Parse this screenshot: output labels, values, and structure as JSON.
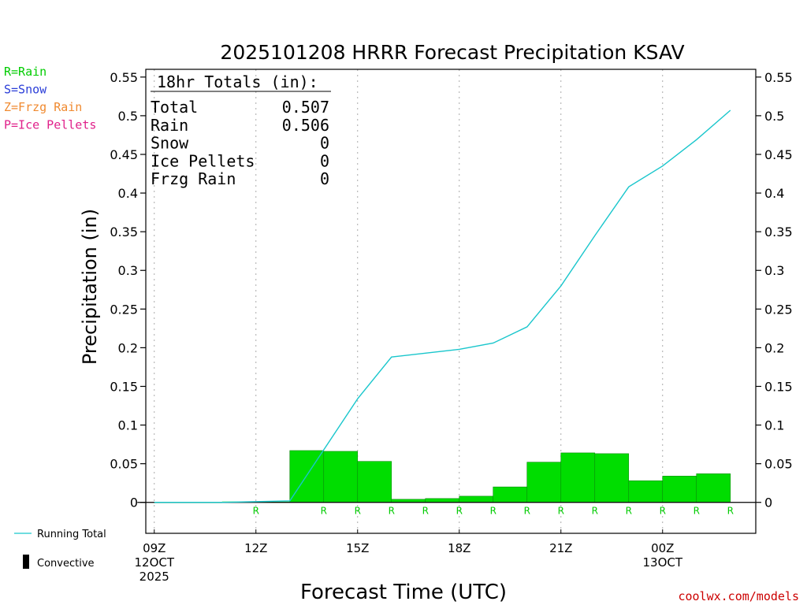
{
  "chart_data": {
    "type": "bar",
    "title": "2025101208 HRRR Forecast Precipitation KSAV",
    "xlabel": "Forecast Time (UTC)",
    "ylabel": "Precipitation (in)",
    "ylim": [
      -0.04,
      0.56
    ],
    "yticks": [
      0,
      0.05,
      0.1,
      0.15,
      0.2,
      0.25,
      0.3,
      0.35,
      0.4,
      0.45,
      0.5,
      0.55
    ],
    "ytick_labels": [
      "0",
      "0.05",
      "0.1",
      "0.15",
      "0.2",
      "0.25",
      "0.3",
      "0.35",
      "0.4",
      "0.45",
      "0.5",
      "0.55"
    ],
    "grid": "vertical dotted lines at labeled hours",
    "xlim": [
      8.75,
      26.75
    ],
    "x_ticks": [
      {
        "hour": 9,
        "lines": [
          "09Z",
          "12OCT",
          "2025"
        ]
      },
      {
        "hour": 12,
        "lines": [
          "12Z"
        ]
      },
      {
        "hour": 15,
        "lines": [
          "15Z"
        ]
      },
      {
        "hour": 18,
        "lines": [
          "18Z"
        ]
      },
      {
        "hour": 21,
        "lines": [
          "21Z"
        ]
      },
      {
        "hour": 24,
        "lines": [
          "00Z",
          "13OCT"
        ]
      }
    ],
    "hourly_precip": {
      "hours": [
        10,
        11,
        12,
        13,
        14,
        15,
        16,
        17,
        18,
        19,
        20,
        21,
        22,
        23,
        24,
        25,
        26
      ],
      "values": [
        0,
        0,
        0.001,
        0.001,
        0.067,
        0.066,
        0.053,
        0.004,
        0.005,
        0.008,
        0.02,
        0.052,
        0.064,
        0.063,
        0.028,
        0.034,
        0.037
      ],
      "color": "#00dd00"
    },
    "running_total": {
      "name": "Running Total",
      "color": "#19c6cc",
      "x": [
        9,
        10,
        11,
        12,
        13,
        14,
        15,
        16,
        17,
        18,
        19,
        20,
        21,
        22,
        23,
        24,
        25,
        26
      ],
      "y": [
        0,
        0,
        0,
        0.001,
        0.002,
        0.068,
        0.134,
        0.188,
        0.193,
        0.198,
        0.206,
        0.227,
        0.28,
        0.345,
        0.408,
        0.435,
        0.469,
        0.507
      ]
    },
    "precip_type_marks": {
      "hours": [
        12,
        14,
        15,
        16,
        17,
        18,
        19,
        20,
        21,
        22,
        23,
        24,
        25,
        26
      ],
      "label": "R",
      "color": "#00cc00"
    },
    "totals_box": {
      "heading": "18hr Totals (in):",
      "rows": [
        {
          "label": "Total",
          "value": "0.507"
        },
        {
          "label": "Rain",
          "value": "0.506"
        },
        {
          "label": "Snow",
          "value": "0"
        },
        {
          "label": "Ice Pellets",
          "value": "0"
        },
        {
          "label": "Frzg Rain",
          "value": "0"
        }
      ]
    },
    "type_key": [
      {
        "text": "R=Rain",
        "color": "#00cc00"
      },
      {
        "text": "S=Snow",
        "color": "#2a3dd8"
      },
      {
        "text": "Z=Frzg Rain",
        "color": "#f08a30"
      },
      {
        "text": "P=Ice Pellets",
        "color": "#e0208a"
      }
    ],
    "legend": [
      {
        "label": "Running Total",
        "kind": "line",
        "color": "#19c6cc"
      },
      {
        "label": "Convective",
        "kind": "bar",
        "color": "#000000"
      }
    ],
    "credit": "coolwx.com/models",
    "credit_color": "#cc0000"
  }
}
